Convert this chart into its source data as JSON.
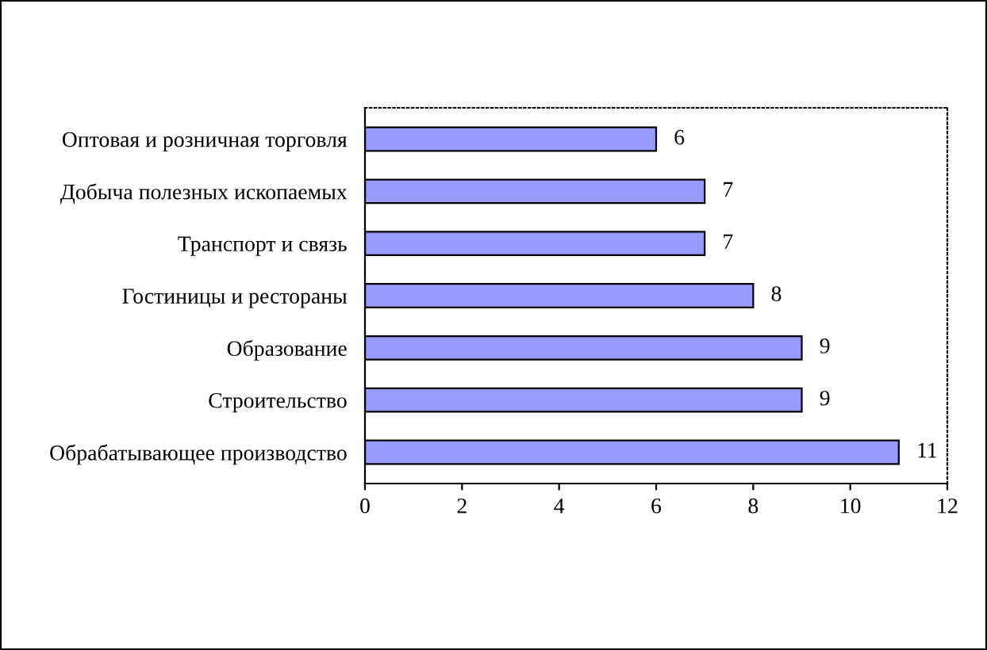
{
  "chart_data": {
    "type": "bar",
    "orientation": "horizontal",
    "categories": [
      "Оптовая и розничная торговля",
      "Добыча полезных ископаемых",
      "Транспорт и связь",
      "Гостиницы и рестораны",
      "Образование",
      "Строительство",
      "Обрабатывающее производство"
    ],
    "values": [
      6,
      7,
      7,
      8,
      9,
      9,
      11
    ],
    "color": "#9999ff",
    "xlim": [
      0,
      12
    ],
    "xticks": [
      0,
      2,
      4,
      6,
      8,
      10,
      12
    ],
    "data_labels": true,
    "grid": false
  }
}
